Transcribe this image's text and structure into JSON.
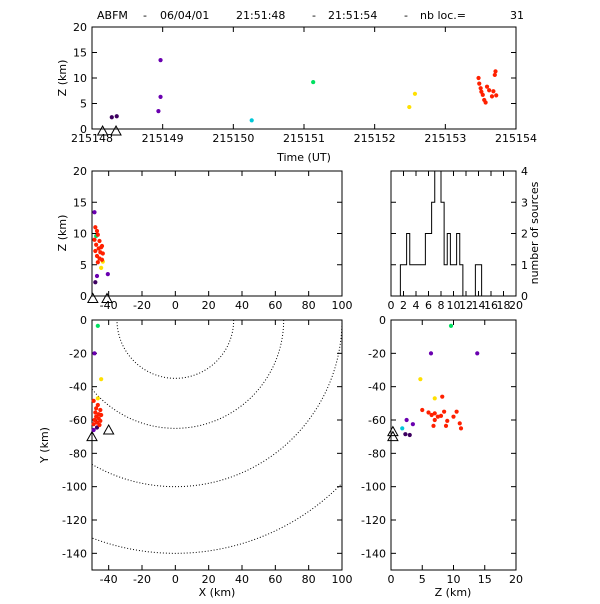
{
  "title": {
    "network": "ABFM",
    "date": "06/04/01",
    "start": "21:51:48",
    "end": "21:51:54",
    "count_label": "nb loc.=",
    "count": "31"
  },
  "chart_data": [
    {
      "panel": "z-vs-time",
      "type": "scatter",
      "xlabel": "Time (UT)",
      "ylabel": "Z (km)",
      "xlim": [
        215148,
        215154
      ],
      "ylim": [
        0,
        20
      ],
      "xticks": [
        "215148",
        "215149",
        "215150",
        "215151",
        "215152",
        "215153",
        "215154"
      ],
      "yticks": [
        "0",
        "5",
        "10",
        "15",
        "20"
      ],
      "points": [
        {
          "x": 215148.15,
          "y": -0.4,
          "color": "#000000",
          "marker": "station"
        },
        {
          "x": 215148.34,
          "y": -0.4,
          "color": "#000000",
          "marker": "station"
        },
        {
          "x": 215148.28,
          "y": 2.3,
          "color": "#3d0060"
        },
        {
          "x": 215148.35,
          "y": 2.5,
          "color": "#3d0060"
        },
        {
          "x": 215148.94,
          "y": 3.5,
          "color": "#6a00b0"
        },
        {
          "x": 215148.97,
          "y": 6.3,
          "color": "#6a00b0"
        },
        {
          "x": 215148.97,
          "y": 13.5,
          "color": "#6a00b0"
        },
        {
          "x": 215150.26,
          "y": 1.7,
          "color": "#00c8d8"
        },
        {
          "x": 215151.13,
          "y": 9.2,
          "color": "#00e060"
        },
        {
          "x": 215152.49,
          "y": 4.3,
          "color": "#ffe000"
        },
        {
          "x": 215152.57,
          "y": 6.9,
          "color": "#ffe000"
        },
        {
          "x": 215153.47,
          "y": 10.0,
          "color": "#ff2000"
        },
        {
          "x": 215153.48,
          "y": 8.9,
          "color": "#ff2000"
        },
        {
          "x": 215153.5,
          "y": 8.0,
          "color": "#ff2000"
        },
        {
          "x": 215153.51,
          "y": 7.3,
          "color": "#ff2000"
        },
        {
          "x": 215153.53,
          "y": 6.7,
          "color": "#ff2000"
        },
        {
          "x": 215153.55,
          "y": 5.7,
          "color": "#ff2000"
        },
        {
          "x": 215153.57,
          "y": 5.2,
          "color": "#ff2000"
        },
        {
          "x": 215153.59,
          "y": 8.3,
          "color": "#ff2000"
        },
        {
          "x": 215153.62,
          "y": 7.6,
          "color": "#ff2000"
        },
        {
          "x": 215153.66,
          "y": 6.4,
          "color": "#ff2000"
        },
        {
          "x": 215153.68,
          "y": 7.4,
          "color": "#ff2000"
        },
        {
          "x": 215153.7,
          "y": 10.6,
          "color": "#ff2000"
        },
        {
          "x": 215153.71,
          "y": 11.3,
          "color": "#ff2000"
        },
        {
          "x": 215153.72,
          "y": 6.6,
          "color": "#ff2000"
        }
      ]
    },
    {
      "panel": "z-vs-x",
      "type": "scatter",
      "xlabel": "",
      "ylabel": "Z (km)",
      "xlim": [
        -50,
        100
      ],
      "ylim": [
        0,
        20
      ],
      "xticks": [
        "-40",
        "-20",
        "0",
        "20",
        "40",
        "60",
        "80",
        "100"
      ],
      "yticks": [
        "0",
        "5",
        "10",
        "15",
        "20"
      ],
      "points": [
        {
          "x": -49.5,
          "y": -0.4,
          "color": "#000000",
          "marker": "station"
        },
        {
          "x": -41.0,
          "y": -0.4,
          "color": "#000000",
          "marker": "station"
        },
        {
          "x": -48.5,
          "y": 13.4,
          "color": "#6a00b0"
        },
        {
          "x": -47.0,
          "y": 3.2,
          "color": "#6a00b0"
        },
        {
          "x": -40.5,
          "y": 3.5,
          "color": "#6a00b0"
        },
        {
          "x": -48.0,
          "y": 2.2,
          "color": "#3d0060"
        },
        {
          "x": -47.5,
          "y": 9.6,
          "color": "#00e060"
        },
        {
          "x": -44.5,
          "y": 4.5,
          "color": "#ffe000"
        },
        {
          "x": -43.5,
          "y": 5.5,
          "color": "#ffe000"
        },
        {
          "x": -48.0,
          "y": 11.0,
          "color": "#ff2000"
        },
        {
          "x": -47.0,
          "y": 10.4,
          "color": "#ff2000"
        },
        {
          "x": -46.5,
          "y": 9.8,
          "color": "#ff2000"
        },
        {
          "x": -48.5,
          "y": 9.0,
          "color": "#ff2000"
        },
        {
          "x": -45.5,
          "y": 8.8,
          "color": "#ff2000"
        },
        {
          "x": -47.5,
          "y": 8.2,
          "color": "#ff2000"
        },
        {
          "x": -44.0,
          "y": 8.0,
          "color": "#ff2000"
        },
        {
          "x": -46.0,
          "y": 7.6,
          "color": "#ff2000"
        },
        {
          "x": -48.0,
          "y": 7.2,
          "color": "#ff2000"
        },
        {
          "x": -45.0,
          "y": 7.0,
          "color": "#ff2000"
        },
        {
          "x": -43.5,
          "y": 6.8,
          "color": "#ff2000"
        },
        {
          "x": -47.0,
          "y": 6.4,
          "color": "#ff2000"
        },
        {
          "x": -45.5,
          "y": 6.0,
          "color": "#ff2000"
        },
        {
          "x": -44.0,
          "y": 5.8,
          "color": "#ff2000"
        },
        {
          "x": -46.5,
          "y": 5.4,
          "color": "#ff2000"
        },
        {
          "x": -44.5,
          "y": 7.8,
          "color": "#ff2000"
        }
      ]
    },
    {
      "panel": "histogram",
      "type": "bar",
      "xlabel": "",
      "ylabel": "number of sources",
      "xlim": [
        0,
        20
      ],
      "ylim": [
        0,
        4
      ],
      "xticks": [
        "0",
        "2",
        "4",
        "6",
        "8",
        "10",
        "12",
        "14",
        "16",
        "18",
        "20"
      ],
      "yticks": [
        "0",
        "1",
        "2",
        "3",
        "4"
      ],
      "bin_width": 0.5,
      "bins": [
        {
          "x0": 1.5,
          "value": 1
        },
        {
          "x0": 2.0,
          "value": 1
        },
        {
          "x0": 2.5,
          "value": 2
        },
        {
          "x0": 3.0,
          "value": 1
        },
        {
          "x0": 3.5,
          "value": 1
        },
        {
          "x0": 4.0,
          "value": 1
        },
        {
          "x0": 4.5,
          "value": 1
        },
        {
          "x0": 5.0,
          "value": 1
        },
        {
          "x0": 5.5,
          "value": 2
        },
        {
          "x0": 6.0,
          "value": 2
        },
        {
          "x0": 6.5,
          "value": 3
        },
        {
          "x0": 7.0,
          "value": 4
        },
        {
          "x0": 7.5,
          "value": 4
        },
        {
          "x0": 8.0,
          "value": 3
        },
        {
          "x0": 8.5,
          "value": 1
        },
        {
          "x0": 9.0,
          "value": 2
        },
        {
          "x0": 9.5,
          "value": 1
        },
        {
          "x0": 10.0,
          "value": 1
        },
        {
          "x0": 10.5,
          "value": 2
        },
        {
          "x0": 11.0,
          "value": 1
        },
        {
          "x0": 13.5,
          "value": 1
        },
        {
          "x0": 14.0,
          "value": 1
        }
      ]
    },
    {
      "panel": "y-vs-x-map",
      "type": "scatter",
      "xlabel": "X (km)",
      "ylabel": "Y (km)",
      "xlim": [
        -50,
        100
      ],
      "ylim": [
        -150,
        0
      ],
      "xticks": [
        "-40",
        "-20",
        "0",
        "20",
        "40",
        "60",
        "80",
        "100"
      ],
      "yticks": [
        "-140",
        "-120",
        "-100",
        "-80",
        "-60",
        "-40",
        "-20",
        "0"
      ],
      "range_rings": {
        "center_x": 0,
        "center_y": 0,
        "radii_km": [
          35,
          65,
          100,
          140
        ]
      },
      "points": [
        {
          "x": -50.0,
          "y": -70.0,
          "color": "#000000",
          "marker": "station"
        },
        {
          "x": -40.0,
          "y": -66.0,
          "color": "#000000",
          "marker": "station"
        },
        {
          "x": -46.5,
          "y": -3.5,
          "color": "#00e060"
        },
        {
          "x": -48.5,
          "y": -20.0,
          "color": "#6a00b0"
        },
        {
          "x": -44.5,
          "y": -35.5,
          "color": "#ffe000"
        },
        {
          "x": -46.5,
          "y": -47.0,
          "color": "#ffe000"
        },
        {
          "x": -49.0,
          "y": -66.0,
          "color": "#6a00b0"
        },
        {
          "x": -47.0,
          "y": -64.5,
          "color": "#3d0060"
        },
        {
          "x": -49.0,
          "y": -48.5,
          "color": "#ff2000"
        },
        {
          "x": -46.5,
          "y": -51.0,
          "color": "#ff2000"
        },
        {
          "x": -47.5,
          "y": -53.0,
          "color": "#ff2000"
        },
        {
          "x": -45.0,
          "y": -54.0,
          "color": "#ff2000"
        },
        {
          "x": -48.0,
          "y": -55.5,
          "color": "#ff2000"
        },
        {
          "x": -46.0,
          "y": -56.5,
          "color": "#ff2000"
        },
        {
          "x": -44.5,
          "y": -57.0,
          "color": "#ff2000"
        },
        {
          "x": -47.5,
          "y": -58.0,
          "color": "#ff2000"
        },
        {
          "x": -46.0,
          "y": -59.0,
          "color": "#ff2000"
        },
        {
          "x": -48.5,
          "y": -60.0,
          "color": "#ff2000"
        },
        {
          "x": -45.0,
          "y": -60.5,
          "color": "#ff2000"
        },
        {
          "x": -47.0,
          "y": -61.5,
          "color": "#ff2000"
        },
        {
          "x": -49.0,
          "y": -62.5,
          "color": "#ff2000"
        },
        {
          "x": -45.5,
          "y": -63.0,
          "color": "#ff2000"
        }
      ]
    },
    {
      "panel": "y-vs-z",
      "type": "scatter",
      "xlabel": "Z (km)",
      "ylabel": "",
      "xlim": [
        0,
        20
      ],
      "ylim": [
        -150,
        0
      ],
      "xticks": [
        "0",
        "5",
        "10",
        "15",
        "20"
      ],
      "yticks": [
        "-140",
        "-120",
        "-100",
        "-80",
        "-60",
        "-40",
        "-20",
        "0"
      ],
      "points": [
        {
          "x": 0.3,
          "y": -70.0,
          "color": "#000000",
          "marker": "station"
        },
        {
          "x": 0.3,
          "y": -67.0,
          "color": "#000000",
          "marker": "station"
        },
        {
          "x": 9.6,
          "y": -3.5,
          "color": "#00e060"
        },
        {
          "x": 6.4,
          "y": -20.0,
          "color": "#6a00b0"
        },
        {
          "x": 13.8,
          "y": -20.0,
          "color": "#6a00b0"
        },
        {
          "x": 4.7,
          "y": -35.5,
          "color": "#ffe000"
        },
        {
          "x": 7.0,
          "y": -47.0,
          "color": "#ffe000"
        },
        {
          "x": 1.8,
          "y": -65.0,
          "color": "#00c8d8"
        },
        {
          "x": 2.5,
          "y": -60.0,
          "color": "#6a00b0"
        },
        {
          "x": 2.3,
          "y": -68.5,
          "color": "#3d0060"
        },
        {
          "x": 3.0,
          "y": -69.0,
          "color": "#3d0060"
        },
        {
          "x": 3.5,
          "y": -62.5,
          "color": "#6a00b0"
        },
        {
          "x": 8.2,
          "y": -46.0,
          "color": "#ff2000"
        },
        {
          "x": 5.0,
          "y": -54.0,
          "color": "#ff2000"
        },
        {
          "x": 6.0,
          "y": -55.5,
          "color": "#ff2000"
        },
        {
          "x": 6.5,
          "y": -57.0,
          "color": "#ff2000"
        },
        {
          "x": 7.0,
          "y": -56.0,
          "color": "#ff2000"
        },
        {
          "x": 7.5,
          "y": -58.0,
          "color": "#ff2000"
        },
        {
          "x": 8.0,
          "y": -57.5,
          "color": "#ff2000"
        },
        {
          "x": 8.5,
          "y": -55.0,
          "color": "#ff2000"
        },
        {
          "x": 7.0,
          "y": -60.0,
          "color": "#ff2000"
        },
        {
          "x": 9.0,
          "y": -60.5,
          "color": "#ff2000"
        },
        {
          "x": 10.0,
          "y": -58.0,
          "color": "#ff2000"
        },
        {
          "x": 10.5,
          "y": -55.0,
          "color": "#ff2000"
        },
        {
          "x": 11.0,
          "y": -62.0,
          "color": "#ff2000"
        },
        {
          "x": 6.8,
          "y": -63.5,
          "color": "#ff2000"
        },
        {
          "x": 8.8,
          "y": -63.5,
          "color": "#ff2000"
        },
        {
          "x": 11.2,
          "y": -65.0,
          "color": "#ff2000"
        }
      ]
    }
  ]
}
